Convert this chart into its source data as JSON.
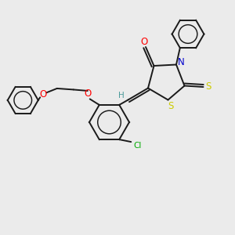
{
  "background_color": "#ebebeb",
  "bond_color": "#1a1a1a",
  "atom_colors": {
    "O": "#ff0000",
    "N": "#0000cc",
    "S": "#cccc00",
    "Cl": "#00aa00",
    "H": "#4a9a9a",
    "C": "#1a1a1a"
  },
  "lw": 1.4,
  "fs": 7.0
}
